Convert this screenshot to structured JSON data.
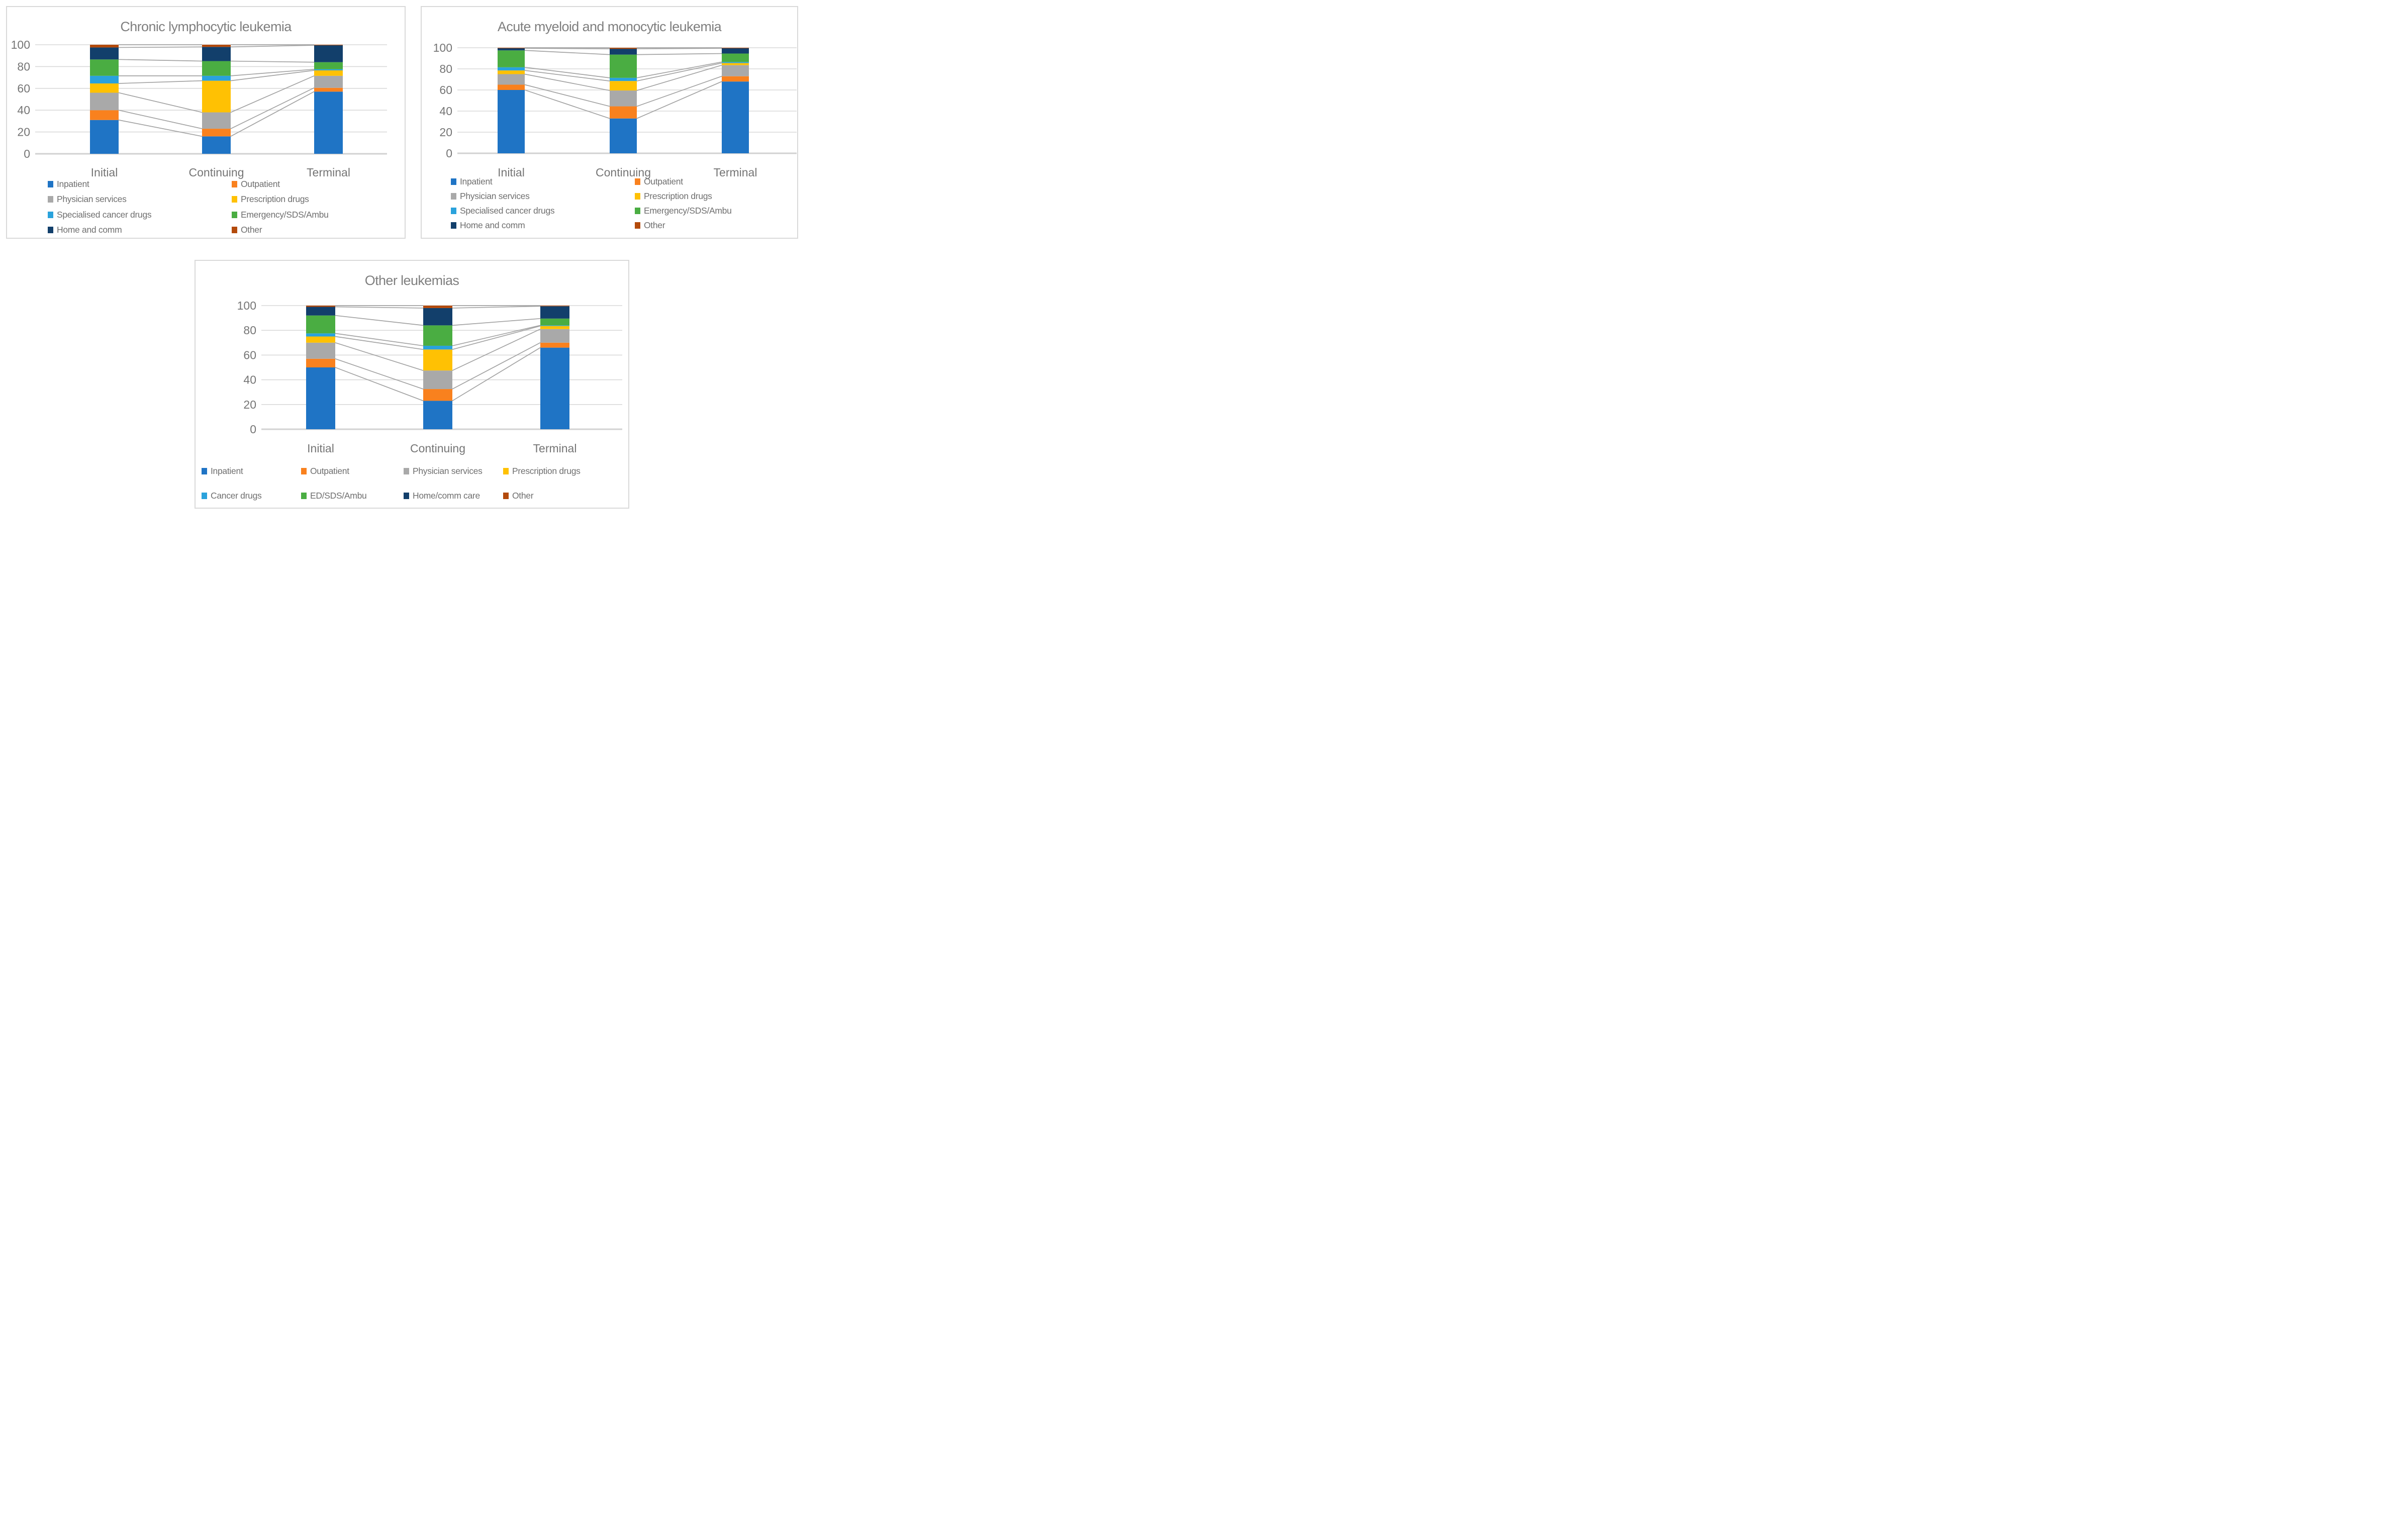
{
  "figure": {
    "background": "#FFFFFF",
    "grid_color": "#D9D9D9",
    "baseline_color": "#D2D2D2",
    "connector_line_color": "#A3A3A3",
    "axis_text_color": "#757575",
    "title_text_color": "#7F7F7F",
    "legend_text_color": "#6F6F6F"
  },
  "chart_data": [
    {
      "type": "bar",
      "variant": "100%-stacked-column",
      "title": "Chronic lymphocytic leukemia",
      "categories": [
        "Initial",
        "Continuing",
        "Terminal"
      ],
      "ylim": [
        0,
        100
      ],
      "yticks": [
        0,
        20,
        40,
        60,
        80,
        100
      ],
      "grid": true,
      "legend_position": "bottom",
      "legend_columns": 2,
      "series_connector_lines": true,
      "series": [
        {
          "name": "Inpatient",
          "color": "#1F74C5",
          "values": [
            31,
            16,
            57
          ]
        },
        {
          "name": "Outpatient",
          "color": "#F9811E",
          "values": [
            9,
            7,
            3.5
          ]
        },
        {
          "name": "Physician services",
          "color": "#A9A9A9",
          "values": [
            16,
            15,
            11
          ]
        },
        {
          "name": "Prescription drugs",
          "color": "#FFC103",
          "values": [
            8.5,
            29,
            5
          ]
        },
        {
          "name": "Specialised cancer drugs",
          "color": "#2AA2DC",
          "values": [
            7,
            4.5,
            1
          ]
        },
        {
          "name": "Emergency/SDS/Ambu",
          "color": "#4AAD42",
          "values": [
            15,
            13.5,
            6.5
          ]
        },
        {
          "name": "Home and comm",
          "color": "#123F6B",
          "values": [
            11,
            13,
            15.5
          ]
        },
        {
          "name": "Other",
          "color": "#B34A0B",
          "values": [
            2.5,
            2,
            0.5
          ]
        }
      ]
    },
    {
      "type": "bar",
      "variant": "100%-stacked-column",
      "title": "Acute myeloid and monocytic leukemia",
      "categories": [
        "Initial",
        "Continuing",
        "Terminal"
      ],
      "ylim": [
        0,
        100
      ],
      "yticks": [
        0,
        20,
        40,
        60,
        80,
        100
      ],
      "grid": true,
      "legend_position": "bottom",
      "legend_columns": 2,
      "series_connector_lines": true,
      "series": [
        {
          "name": "Inpatient",
          "color": "#1F74C5",
          "values": [
            60,
            33,
            68
          ]
        },
        {
          "name": "Outpatient",
          "color": "#F9811E",
          "values": [
            5,
            11.5,
            5
          ]
        },
        {
          "name": "Physician services",
          "color": "#A9A9A9",
          "values": [
            10,
            15,
            10.5
          ]
        },
        {
          "name": "Prescription drugs",
          "color": "#FFC103",
          "values": [
            3.5,
            9,
            2
          ]
        },
        {
          "name": "Specialised cancer drugs",
          "color": "#2AA2DC",
          "values": [
            3,
            3,
            1
          ]
        },
        {
          "name": "Emergency/SDS/Ambu",
          "color": "#4AAD42",
          "values": [
            16,
            22,
            8
          ]
        },
        {
          "name": "Home and comm",
          "color": "#123F6B",
          "values": [
            2,
            5.5,
            5
          ]
        },
        {
          "name": "Other",
          "color": "#B34A0B",
          "values": [
            0.5,
            1,
            0.5
          ]
        }
      ]
    },
    {
      "type": "bar",
      "variant": "100%-stacked-column",
      "title": "Other leukemias",
      "categories": [
        "Initial",
        "Continuing",
        "Terminal"
      ],
      "ylim": [
        0,
        100
      ],
      "yticks": [
        0,
        20,
        40,
        60,
        80,
        100
      ],
      "grid": true,
      "legend_position": "bottom",
      "legend_columns": 4,
      "series_connector_lines": true,
      "series": [
        {
          "name": "Inpatient",
          "color": "#1F74C5",
          "values": [
            50,
            23,
            66
          ]
        },
        {
          "name": "Outpatient",
          "color": "#F9811E",
          "values": [
            7,
            9.5,
            4
          ]
        },
        {
          "name": "Physician services",
          "color": "#A9A9A9",
          "values": [
            13,
            15,
            11
          ]
        },
        {
          "name": "Prescription drugs",
          "color": "#FFC103",
          "values": [
            5,
            17,
            2.5
          ]
        },
        {
          "name": "Cancer drugs",
          "color": "#2AA2DC",
          "values": [
            2.5,
            3,
            0.5
          ]
        },
        {
          "name": "ED/SDS/Ambu",
          "color": "#4AAD42",
          "values": [
            14.5,
            16.5,
            5.5
          ]
        },
        {
          "name": "Home/comm care",
          "color": "#123F6B",
          "values": [
            7,
            14,
            10
          ]
        },
        {
          "name": "Other",
          "color": "#B34A0B",
          "values": [
            1,
            2,
            0.5
          ]
        }
      ]
    }
  ]
}
